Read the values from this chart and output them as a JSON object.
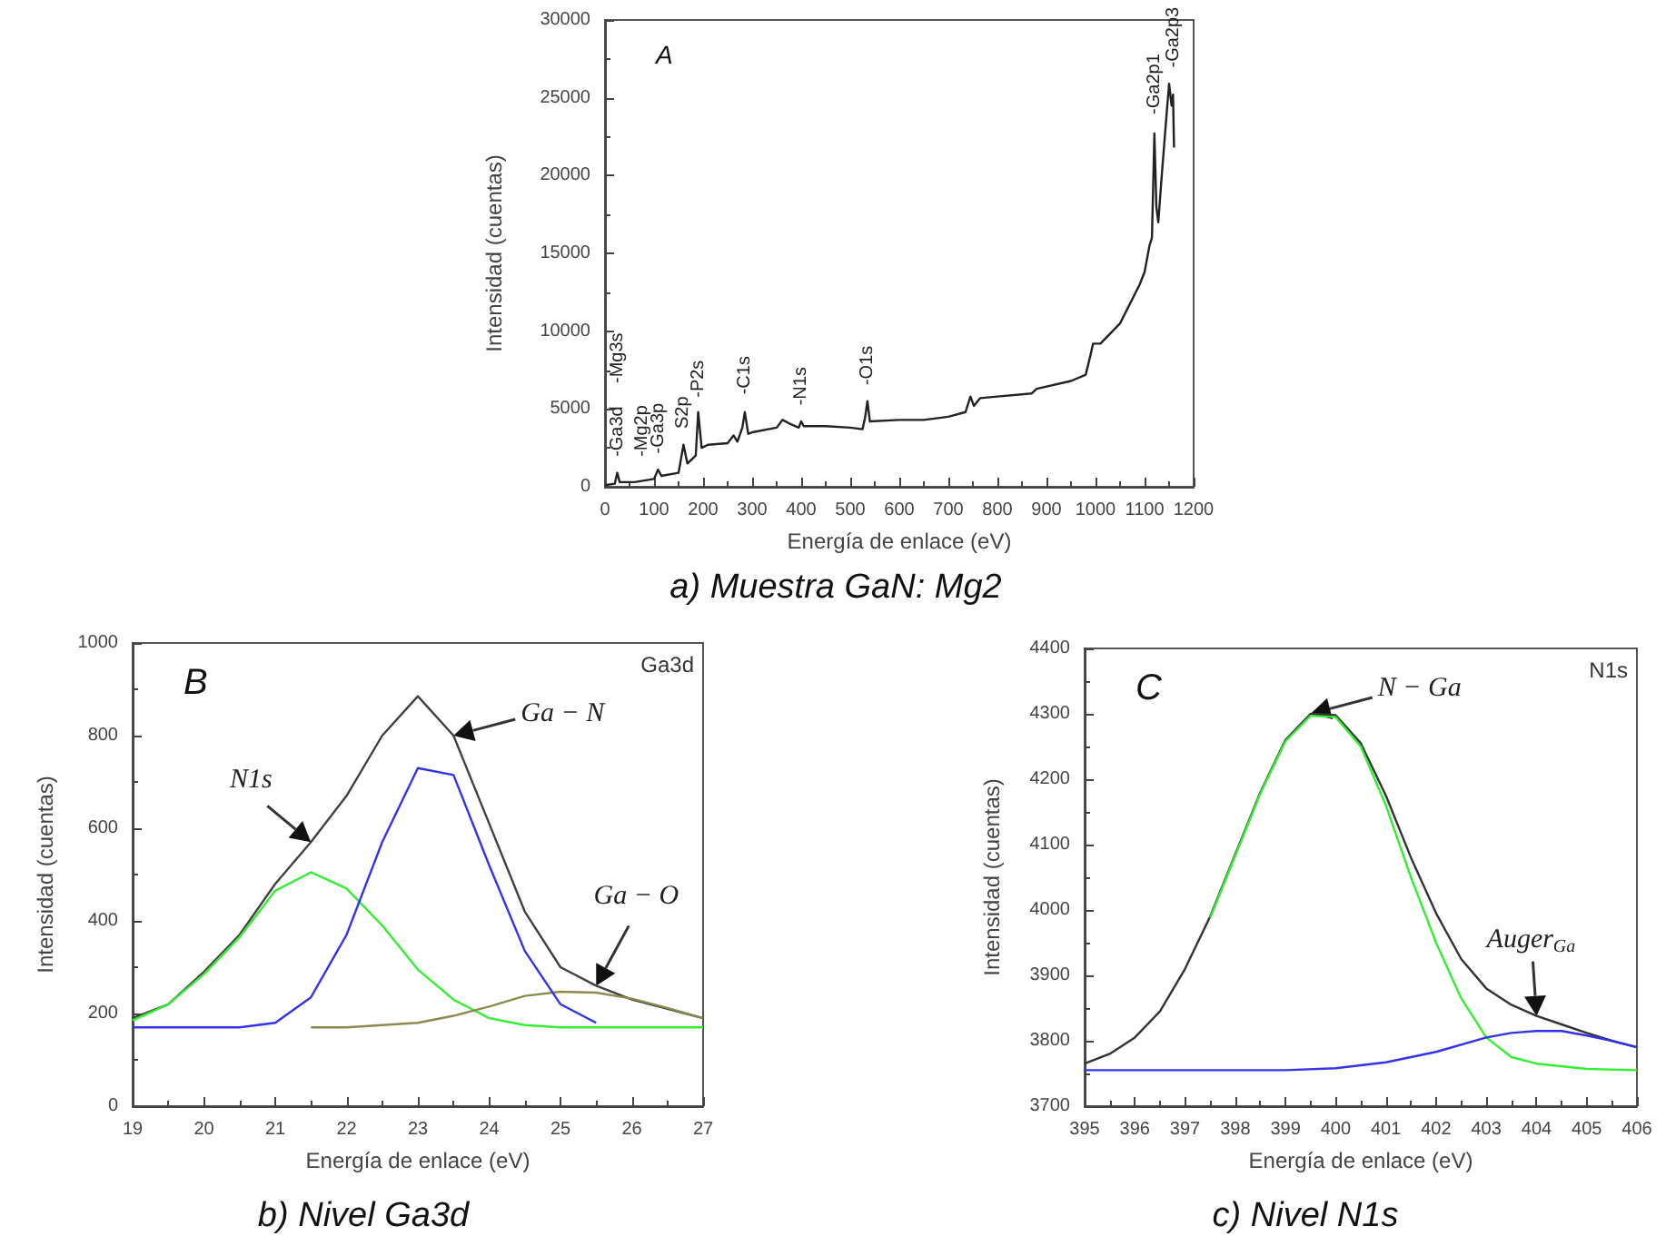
{
  "chart_data": [
    {
      "type": "line",
      "title": "a) Muestra GaN: Mg2",
      "xlabel": "Energía de enlace (eV)",
      "ylabel": "Intensidad (cuentas)",
      "xlim": [
        0,
        1200
      ],
      "ylim": [
        0,
        30000
      ],
      "xticks": [
        0,
        100,
        200,
        300,
        400,
        500,
        600,
        700,
        800,
        900,
        1000,
        1100,
        1200
      ],
      "yticks": [
        0,
        5000,
        10000,
        15000,
        20000,
        25000,
        30000
      ],
      "series": [
        {
          "color": "#222222",
          "x": [
            0,
            20,
            25,
            30,
            60,
            100,
            108,
            115,
            150,
            160,
            168,
            185,
            190,
            197,
            210,
            250,
            262,
            270,
            280,
            285,
            292,
            300,
            350,
            362,
            380,
            395,
            400,
            405,
            450,
            500,
            525,
            530,
            535,
            540,
            600,
            650,
            700,
            735,
            745,
            752,
            765,
            800,
            870,
            880,
            950,
            980,
            990,
            995,
            1010,
            1050,
            1090,
            1100,
            1110,
            1115,
            1118,
            1120,
            1124,
            1128,
            1135,
            1145,
            1150,
            1155,
            1158,
            1160
          ],
          "values": [
            100,
            200,
            900,
            300,
            300,
            500,
            1100,
            700,
            900,
            2700,
            1500,
            2000,
            4800,
            2500,
            2700,
            2800,
            3300,
            2900,
            3800,
            4800,
            3400,
            3500,
            3800,
            4300,
            4000,
            3800,
            4200,
            3900,
            3900,
            3800,
            3700,
            4400,
            5500,
            4200,
            4300,
            4300,
            4500,
            4800,
            5800,
            5200,
            5700,
            5800,
            6000,
            6300,
            6800,
            7200,
            8500,
            9200,
            9200,
            10500,
            13000,
            13800,
            15500,
            16000,
            20000,
            22700,
            18000,
            17000,
            20000,
            24000,
            25900,
            24500,
            25200,
            21800
          ]
        }
      ],
      "annotations": [
        "A",
        "-Mg3s",
        {
          "text": "-Ga3d",
          "x": 25,
          "y": 1000
        },
        {
          "text": "-Mg2p",
          "x": 75,
          "y": 1000
        },
        {
          "text": "-Ga3p",
          "x": 110,
          "y": 1200
        },
        {
          "text": "S2p",
          "x": 160,
          "y": 2800
        },
        {
          "text": "-P2s",
          "x": 190,
          "y": 4800
        },
        {
          "text": "-C1s",
          "x": 285,
          "y": 5000
        },
        {
          "text": "-N1s",
          "x": 400,
          "y": 4300
        },
        {
          "text": "-O1s",
          "x": 535,
          "y": 5600
        },
        {
          "text": "-Ga2p1",
          "x": 1120,
          "y": 23000
        },
        {
          "text": "-Ga2p3",
          "x": 1160,
          "y": 26000
        }
      ]
    },
    {
      "type": "line",
      "title": "b) Nivel Ga3d",
      "xlabel": "Energía de enlace (eV)",
      "ylabel": "Intensidad (cuentas)",
      "xlim": [
        19,
        27
      ],
      "ylim": [
        0,
        1000
      ],
      "xticks": [
        19,
        20,
        21,
        22,
        23,
        24,
        25,
        26,
        27
      ],
      "yticks": [
        0,
        200,
        400,
        600,
        800,
        1000
      ],
      "series": [
        {
          "color": "#404040",
          "x": [
            19,
            19.5,
            20,
            20.5,
            21,
            21.5,
            22,
            22.5,
            23,
            23.5,
            24,
            24.5,
            25,
            25.5,
            26,
            26.5,
            27
          ],
          "values": [
            190,
            220,
            290,
            370,
            480,
            570,
            670,
            800,
            885,
            800,
            610,
            420,
            300,
            260,
            230,
            210,
            190
          ]
        },
        {
          "color": "#33ee33",
          "x": [
            19,
            19.5,
            20,
            20.5,
            21,
            21.5,
            22,
            22.5,
            23,
            23.5,
            24,
            24.5,
            25,
            26,
            27
          ],
          "values": [
            185,
            220,
            285,
            365,
            465,
            505,
            470,
            390,
            295,
            230,
            190,
            175,
            170,
            170,
            170
          ]
        },
        {
          "color": "#8b8b50",
          "x": [
            21.5,
            22,
            22.5,
            23,
            23.5,
            24,
            24.5,
            25,
            25.5,
            26,
            26.5,
            27
          ],
          "values": [
            170,
            170,
            175,
            180,
            195,
            215,
            238,
            247,
            245,
            232,
            212,
            190
          ]
        },
        {
          "color": "#3333ee",
          "x": [
            19,
            19.5,
            20,
            20.5,
            21,
            21.5,
            22,
            22.5,
            23,
            23.5,
            24,
            24.5,
            25,
            25.5
          ],
          "values": [
            170,
            170,
            170,
            170,
            180,
            235,
            370,
            570,
            730,
            715,
            520,
            335,
            220,
            180
          ]
        }
      ],
      "annotations": [
        "B",
        "Ga3d",
        {
          "text": "N1s",
          "x": 21.5,
          "y": 570
        },
        {
          "text": "Ga − N",
          "x": 23.5,
          "y": 800
        },
        {
          "text": "Ga − O",
          "x": 25.5,
          "y": 260
        }
      ]
    },
    {
      "type": "line",
      "title": "c) Nivel N1s",
      "xlabel": "Energía de enlace (eV)",
      "ylabel": "Intensidad (cuentas)",
      "xlim": [
        395,
        406
      ],
      "ylim": [
        3700,
        4400
      ],
      "xticks": [
        395,
        396,
        397,
        398,
        399,
        400,
        401,
        402,
        403,
        404,
        405,
        406
      ],
      "yticks": [
        3700,
        3800,
        3900,
        4000,
        4100,
        4200,
        4300,
        4400
      ],
      "series": [
        {
          "color": "#333333",
          "x": [
            395,
            395.5,
            396,
            396.5,
            397,
            397.5,
            398,
            398.5,
            399,
            399.5,
            400,
            400.5,
            401,
            401.5,
            402,
            402.5,
            403,
            403.5,
            404,
            404.5,
            405,
            405.5,
            406
          ],
          "values": [
            3765,
            3780,
            3805,
            3845,
            3910,
            3990,
            4085,
            4180,
            4260,
            4300,
            4298,
            4255,
            4175,
            4080,
            3995,
            3925,
            3880,
            3855,
            3838,
            3825,
            3812,
            3800,
            3790
          ]
        },
        {
          "color": "#33ee33",
          "x": [
            397.5,
            398,
            398.5,
            399,
            399.5,
            400,
            400.5,
            401,
            401.5,
            402,
            402.5,
            403,
            403.5,
            404,
            405,
            406
          ],
          "values": [
            3988,
            4083,
            4178,
            4258,
            4297,
            4295,
            4250,
            4160,
            4050,
            3950,
            3865,
            3805,
            3775,
            3765,
            3757,
            3755
          ]
        },
        {
          "color": "#3333ee",
          "x": [
            395,
            399,
            400,
            401,
            402,
            403,
            403.5,
            404,
            404.5,
            405,
            405.5,
            406
          ],
          "values": [
            3755,
            3755,
            3758,
            3767,
            3783,
            3805,
            3812,
            3815,
            3815,
            3808,
            3800,
            3790
          ]
        }
      ],
      "annotations": [
        "C",
        "N1s",
        {
          "text": "N − Ga",
          "x": 399.5,
          "y": 4300
        },
        {
          "text": "Auger$_{Ga}$",
          "x": 404,
          "y": 3838
        }
      ]
    }
  ]
}
